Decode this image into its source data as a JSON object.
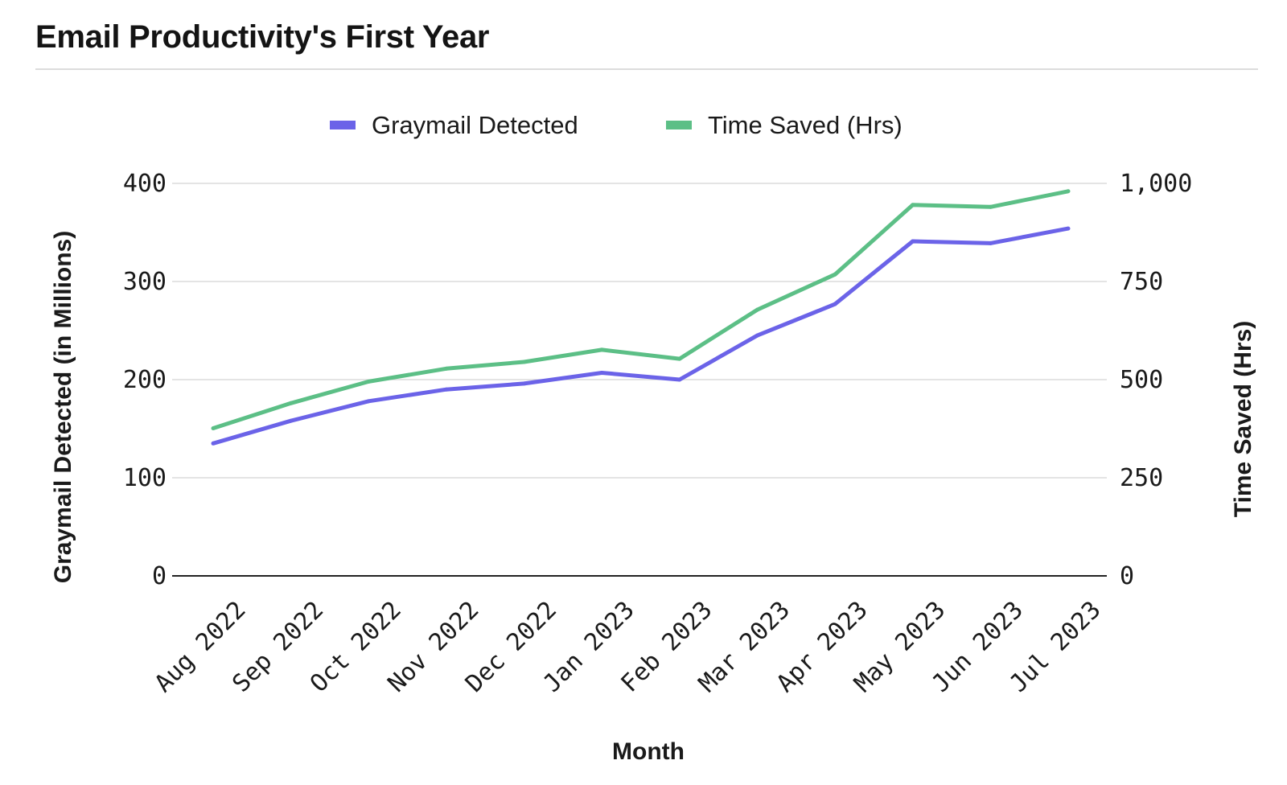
{
  "title": "Email Productivity's First Year",
  "colors": {
    "graymail": "#6b63e8",
    "time_saved": "#5cbf86",
    "grid": "#d4d4d4",
    "axis": "#222222"
  },
  "chart_data": {
    "type": "line",
    "title": "Email Productivity's First Year",
    "xlabel": "Month",
    "ylabel_left": "Graymail Detected (in Millions)",
    "ylabel_right": "Time Saved (Hrs)",
    "ylim_left": [
      0,
      400
    ],
    "ylim_right": [
      0,
      1000
    ],
    "yticks_left": [
      "0",
      "100",
      "200",
      "300",
      "400"
    ],
    "yticks_right": [
      "0",
      "250",
      "500",
      "750",
      "1,000"
    ],
    "grid": true,
    "legend_position": "top-center",
    "categories": [
      "Aug 2022",
      "Sep 2022",
      "Oct 2022",
      "Nov 2022",
      "Dec 2022",
      "Jan 2023",
      "Feb 2023",
      "Mar 2023",
      "Apr 2023",
      "May 2023",
      "Jun 2023",
      "Jul 2023"
    ],
    "series": [
      {
        "name": "Graymail Detected",
        "axis": "left",
        "color": "#6b63e8",
        "values": [
          135,
          158,
          178,
          190,
          196,
          207,
          200,
          245,
          277,
          341,
          339,
          354
        ]
      },
      {
        "name": "Time Saved (Hrs)",
        "axis": "right",
        "color": "#5cbf86",
        "values": [
          376,
          440,
          495,
          528,
          545,
          576,
          553,
          678,
          768,
          945,
          940,
          980
        ]
      }
    ]
  }
}
